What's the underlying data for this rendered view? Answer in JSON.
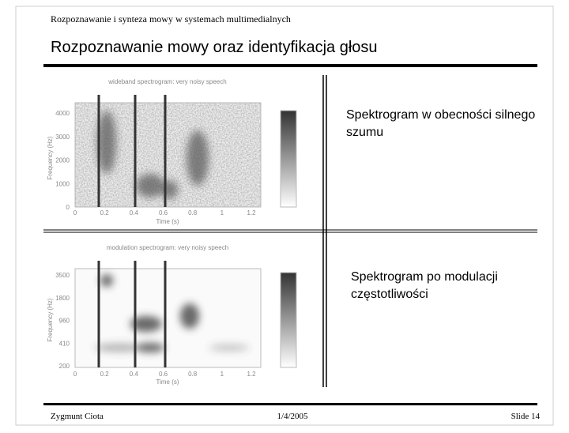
{
  "header": {
    "subtitle": "Rozpoznawanie i synteza mowy w systemach multimedialnych",
    "title": "Rozpoznawanie mowy oraz identyfikacja głosu"
  },
  "figures": [
    {
      "title": "wideband spectrogram: very noisy speech",
      "ylabel": "Frequency (Hz)",
      "xlabel": "Time (s)",
      "yticks": [
        "4000",
        "3000",
        "2000",
        "1000",
        "0"
      ],
      "xticks": [
        "0",
        "0.2",
        "0.4",
        "0.6",
        "0.8",
        "1",
        "1.2"
      ],
      "caption": "Spektrogram  w obecności silnego szumu"
    },
    {
      "title": "modulation spectrogram: very noisy speech",
      "ylabel": "Frequency (Hz)",
      "xlabel": "Time (s)",
      "yticks": [
        "3500",
        "1800",
        "960",
        "410",
        "200"
      ],
      "xticks": [
        "0",
        "0.2",
        "0.4",
        "0.6",
        "0.8",
        "1",
        "1.2"
      ],
      "caption": "Spektrogram po modulacji częstotliwości"
    }
  ],
  "footer": {
    "author": "Zygmunt Ciota",
    "date": "1/4/2005",
    "slide": "Slide  14"
  }
}
